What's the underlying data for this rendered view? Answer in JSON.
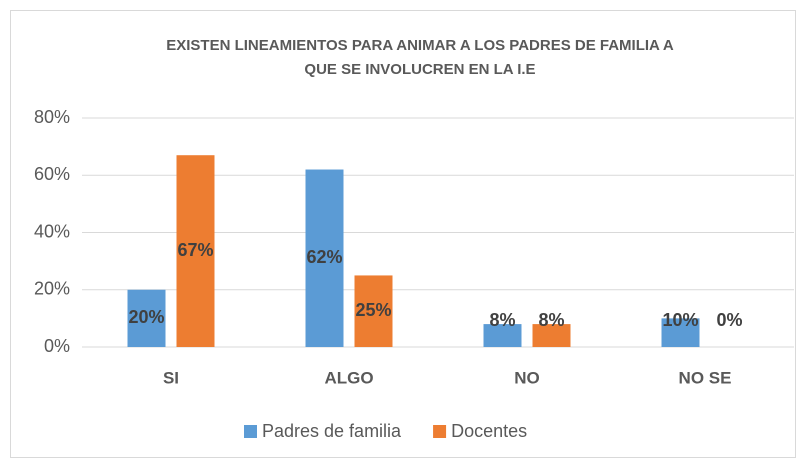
{
  "chart_data": {
    "type": "bar",
    "title": [
      "EXISTEN LINEAMIENTOS PARA ANIMAR A LOS PADRES DE FAMILIA A",
      "QUE SE INVOLUCREN EN LA I.E"
    ],
    "categories": [
      "SI",
      "ALGO",
      "NO",
      "NO SE"
    ],
    "series": [
      {
        "name": "Padres de familia",
        "color": "#5b9bd5",
        "values": [
          20,
          62,
          8,
          10
        ],
        "value_labels": [
          "20%",
          "62%",
          "8%",
          "10%"
        ]
      },
      {
        "name": "Docentes",
        "color": "#ed7d31",
        "values": [
          67,
          25,
          8,
          0
        ],
        "value_labels": [
          "67%",
          "25%",
          "8%",
          "0%"
        ]
      }
    ],
    "ylim": [
      0,
      80
    ],
    "yticks": [
      {
        "value": 0,
        "label": "0%"
      },
      {
        "value": 20,
        "label": "20%"
      },
      {
        "value": 40,
        "label": "40%"
      },
      {
        "value": 60,
        "label": "60%"
      },
      {
        "value": 80,
        "label": "80%"
      }
    ],
    "grid": true,
    "legend": "bottom"
  }
}
